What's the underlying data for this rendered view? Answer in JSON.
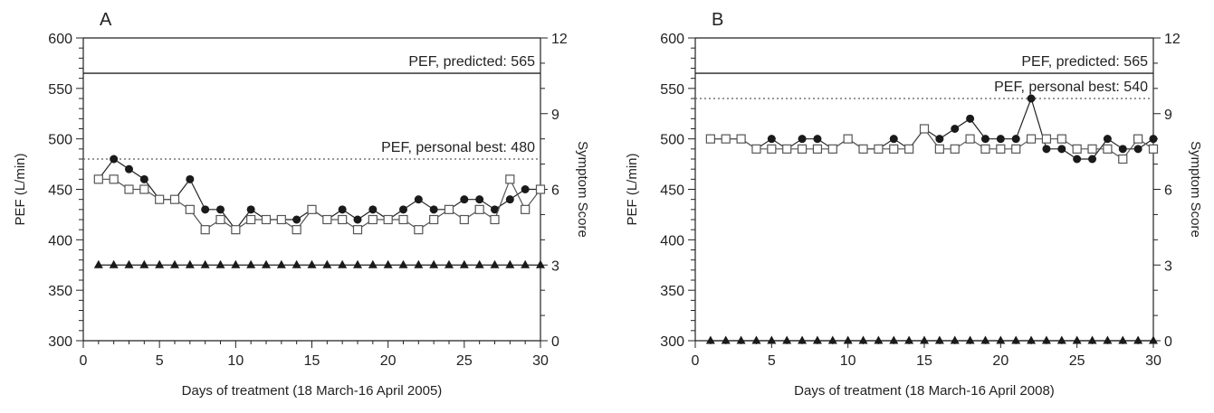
{
  "chart_data": [
    {
      "type": "line",
      "panel_label": "A",
      "xlabel": "Days of treatment (18 March-16 April 2005)",
      "ylabel": "PEF (L/min)",
      "y2label": "Symptom Score",
      "xlim": [
        0,
        30
      ],
      "ylim": [
        300,
        600
      ],
      "y2lim": [
        0,
        12
      ],
      "xticks": [
        0,
        5,
        10,
        15,
        20,
        25,
        30
      ],
      "yticks": [
        300,
        350,
        400,
        450,
        500,
        550,
        600
      ],
      "y2ticks": [
        0,
        3,
        6,
        9,
        12
      ],
      "grid": false,
      "x": [
        1,
        2,
        3,
        4,
        5,
        6,
        7,
        8,
        9,
        10,
        11,
        12,
        13,
        14,
        15,
        16,
        17,
        18,
        19,
        20,
        21,
        22,
        23,
        24,
        25,
        26,
        27,
        28,
        29,
        30
      ],
      "series": [
        {
          "marker": "filled-circle",
          "axis": "left",
          "values": [
            460,
            480,
            470,
            460,
            440,
            440,
            460,
            430,
            430,
            410,
            430,
            420,
            420,
            420,
            430,
            420,
            430,
            420,
            430,
            420,
            430,
            440,
            430,
            430,
            440,
            440,
            430,
            440,
            450,
            450
          ]
        },
        {
          "marker": "open-square",
          "axis": "left",
          "values": [
            460,
            460,
            450,
            450,
            440,
            440,
            430,
            410,
            420,
            410,
            420,
            420,
            420,
            410,
            430,
            420,
            420,
            410,
            420,
            420,
            420,
            410,
            420,
            430,
            420,
            430,
            420,
            460,
            430,
            450
          ]
        },
        {
          "marker": "filled-triangle",
          "axis": "right",
          "values": [
            3,
            3,
            3,
            3,
            3,
            3,
            3,
            3,
            3,
            3,
            3,
            3,
            3,
            3,
            3,
            3,
            3,
            3,
            3,
            3,
            3,
            3,
            3,
            3,
            3,
            3,
            3,
            3,
            3,
            3
          ]
        }
      ],
      "reference_lines": [
        {
          "label": "PEF, predicted: 565",
          "y": 565,
          "style": "solid"
        },
        {
          "label": "PEF, personal best: 480",
          "y": 480,
          "style": "dotted"
        }
      ]
    },
    {
      "type": "line",
      "panel_label": "B",
      "xlabel": "Days of treatment (18 March-16 April 2008)",
      "ylabel": "PEF (L/min)",
      "y2label": "Symptom Score",
      "xlim": [
        0,
        30
      ],
      "ylim": [
        300,
        600
      ],
      "y2lim": [
        0,
        12
      ],
      "xticks": [
        0,
        5,
        10,
        15,
        20,
        25,
        30
      ],
      "yticks": [
        300,
        350,
        400,
        450,
        500,
        550,
        600
      ],
      "y2ticks": [
        0,
        3,
        6,
        9,
        12
      ],
      "grid": false,
      "x": [
        1,
        2,
        3,
        4,
        5,
        6,
        7,
        8,
        9,
        10,
        11,
        12,
        13,
        14,
        15,
        16,
        17,
        18,
        19,
        20,
        21,
        22,
        23,
        24,
        25,
        26,
        27,
        28,
        29,
        30
      ],
      "series": [
        {
          "marker": "filled-circle",
          "axis": "left",
          "values": [
            500,
            500,
            500,
            490,
            500,
            490,
            500,
            500,
            490,
            500,
            490,
            490,
            500,
            490,
            510,
            500,
            510,
            520,
            500,
            500,
            500,
            540,
            490,
            490,
            480,
            480,
            500,
            490,
            490,
            500
          ]
        },
        {
          "marker": "open-square",
          "axis": "left",
          "values": [
            500,
            500,
            500,
            490,
            490,
            490,
            490,
            490,
            490,
            500,
            490,
            490,
            490,
            490,
            510,
            490,
            490,
            500,
            490,
            490,
            490,
            500,
            500,
            500,
            490,
            490,
            490,
            480,
            500,
            490
          ]
        },
        {
          "marker": "filled-triangle",
          "axis": "right",
          "values": [
            0,
            0,
            0,
            0,
            0,
            0,
            0,
            0,
            0,
            0,
            0,
            0,
            0,
            0,
            0,
            0,
            0,
            0,
            0,
            0,
            0,
            0,
            0,
            0,
            0,
            0,
            0,
            0,
            0,
            0
          ]
        }
      ],
      "reference_lines": [
        {
          "label": "PEF, predicted: 565",
          "y": 565,
          "style": "solid"
        },
        {
          "label": "PEF, personal best: 540",
          "y": 540,
          "style": "dotted"
        }
      ]
    }
  ]
}
